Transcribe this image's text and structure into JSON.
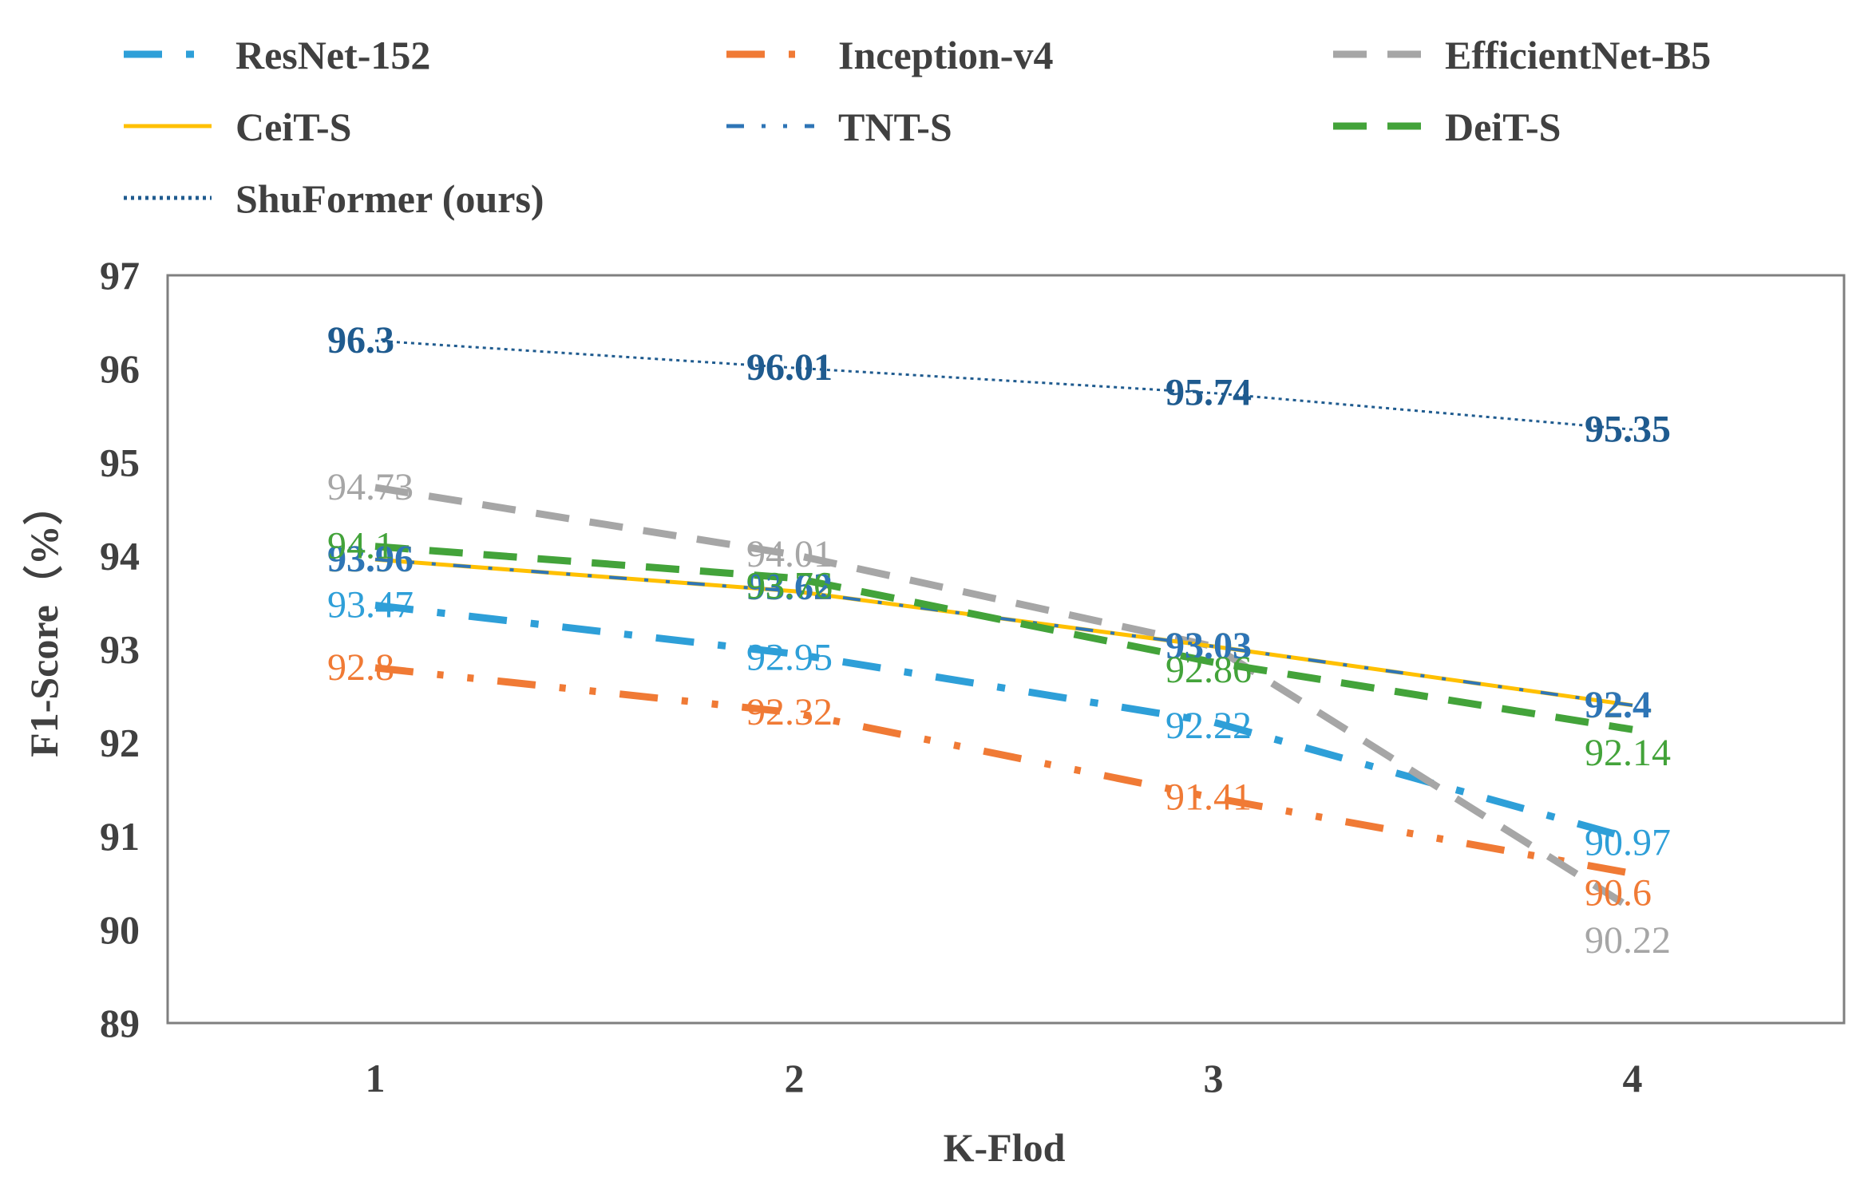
{
  "chart_data": {
    "type": "line",
    "title": "",
    "xlabel": "K-Flod",
    "ylabel": "F1-Score（%）",
    "categories": [
      "1",
      "2",
      "3",
      "4"
    ],
    "ylim": [
      89,
      97
    ],
    "yticks": [
      "97",
      "96",
      "95",
      "94",
      "93",
      "92",
      "91",
      "90",
      "89"
    ],
    "legend_position": "top",
    "series": [
      {
        "name": "ResNet-152",
        "values": [
          93.47,
          92.95,
          92.22,
          90.97
        ],
        "labels": [
          "93.47",
          "92.95",
          "92.22",
          "90.97"
        ],
        "color": "#2e9fd8",
        "dash": "long-dash-dot"
      },
      {
        "name": "Inception-v4",
        "values": [
          92.8,
          92.32,
          91.41,
          90.6
        ],
        "labels": [
          "92.8",
          "92.32",
          "91.41",
          "90.6"
        ],
        "color": "#f07a35",
        "dash": "long-dash-dot-dot"
      },
      {
        "name": "EfficientNet-B5",
        "values": [
          94.73,
          94.01,
          93.03,
          90.22
        ],
        "labels": [
          "94.73",
          "94.01",
          "93.03",
          "90.22"
        ],
        "color": "#a6a6a6",
        "dash": "dash"
      },
      {
        "name": "CeiT-S",
        "values": [
          93.96,
          93.62,
          93.03,
          92.4
        ],
        "labels": [
          "93.96",
          "93.62",
          "93.03",
          "92.4"
        ],
        "color": "#ffc000",
        "dash": "solid"
      },
      {
        "name": "TNT-S",
        "values": [
          93.96,
          93.62,
          93.03,
          92.4
        ],
        "labels": [
          "93.96",
          "93.62",
          "93.03",
          "92.4"
        ],
        "color": "#2e75b6",
        "dash": "dash-dot-dot"
      },
      {
        "name": "DeiT-S",
        "values": [
          94.1,
          93.76,
          92.86,
          92.14
        ],
        "labels": [
          "94.1",
          "93.76",
          "92.86",
          "92.14"
        ],
        "color": "#43a33a",
        "dash": "dash"
      },
      {
        "name": "ShuFormer (ours)",
        "values": [
          96.3,
          96.01,
          95.74,
          95.35
        ],
        "labels": [
          "96.3",
          "96.01",
          "95.74",
          "95.35"
        ],
        "color": "#1f5b8f",
        "dash": "dot"
      }
    ]
  }
}
